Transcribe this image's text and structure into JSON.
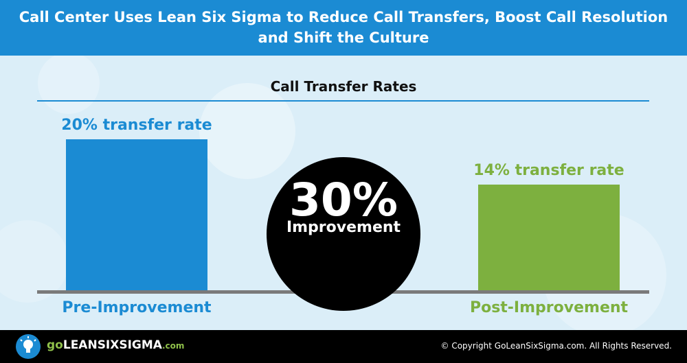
{
  "header": {
    "title_line1": "Call Center Uses Lean Six Sigma to Reduce Call Transfers, Boost Call Resolution",
    "title_line2": "and Shift the Culture"
  },
  "chart_data": {
    "type": "bar",
    "title": "Call Transfer Rates",
    "categories": [
      "Pre-Improvement",
      "Post-Improvement"
    ],
    "values": [
      20,
      14
    ],
    "value_labels": [
      "20% transfer rate",
      "14% transfer rate"
    ],
    "colors": [
      "#1b8bd3",
      "#7db03f"
    ],
    "ylim": [
      0,
      20
    ],
    "grid": false,
    "annotation": {
      "value": "30%",
      "label": "Improvement"
    }
  },
  "footer": {
    "logo_go": "go",
    "logo_name": "LEANSIXSIGMA",
    "logo_com": ".com",
    "copyright": "© Copyright GoLeanSixSigma.com. All Rights Reserved."
  },
  "colors": {
    "header_bg": "#1b8bd3",
    "background": "#dbeef8",
    "footer_bg": "#000000",
    "brand_green": "#8fc04a"
  },
  "icons": {
    "logo": "lightbulb-icon"
  }
}
